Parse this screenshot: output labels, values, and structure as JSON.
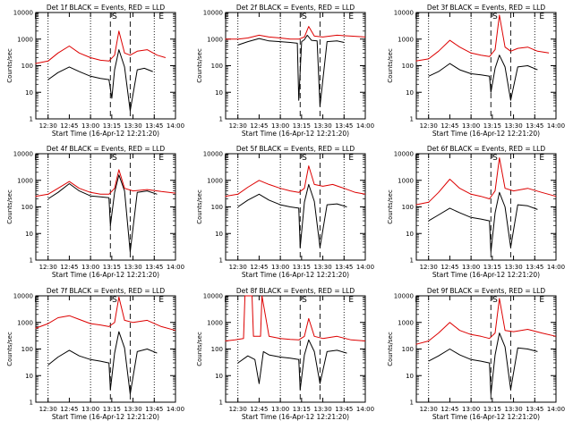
{
  "colors": {
    "events": "#000000",
    "lld": "#dd0000",
    "axis": "#000000"
  },
  "chart_data": [
    {
      "type": "line",
      "title": "Det 1f BLACK = Events, RED = LLD",
      "xlabel": "Start Time (16-Apr-12 12:21:20)",
      "ylabel": "Counts/sec",
      "yscale": "log",
      "ylim": [
        1,
        10000
      ],
      "xlim": [
        "12:21:20",
        "14:00"
      ],
      "x_ticks": [
        "12:30",
        "12:45",
        "13:00",
        "13:15",
        "13:30",
        "13:45",
        "14:00"
      ],
      "y_ticks": [
        "1",
        "10",
        "100",
        "1000",
        "10000"
      ],
      "markers": [
        "E",
        "S",
        "E"
      ],
      "series": [
        {
          "name": "BLACK = Events",
          "color": "#000000",
          "x": [
            "12:30",
            "12:37",
            "12:45",
            "12:52",
            "13:00",
            "13:07",
            "13:13",
            "13:15",
            "13:17",
            "13:20",
            "13:24",
            "13:28",
            "13:33",
            "13:38",
            "13:44"
          ],
          "y": [
            30,
            55,
            90,
            60,
            40,
            33,
            30,
            6,
            70,
            400,
            90,
            2,
            70,
            80,
            60
          ]
        },
        {
          "name": "RED = LLD",
          "color": "#dd0000",
          "x": [
            "12:21",
            "12:30",
            "12:37",
            "12:45",
            "12:52",
            "13:00",
            "13:07",
            "13:13",
            "13:17",
            "13:20",
            "13:24",
            "13:28",
            "13:33",
            "13:40",
            "13:47",
            "13:53"
          ],
          "y": [
            120,
            150,
            300,
            550,
            300,
            200,
            160,
            150,
            250,
            2000,
            300,
            250,
            350,
            400,
            250,
            200
          ]
        }
      ]
    },
    {
      "type": "line",
      "title": "Det 2f BLACK = Events, RED = LLD",
      "xlabel": "Start Time (16-Apr-12 12:21:20)",
      "ylabel": "Counts/sec",
      "yscale": "log",
      "ylim": [
        1,
        10000
      ],
      "xlim": [
        "12:21:20",
        "14:00"
      ],
      "x_ticks": [
        "12:30",
        "12:45",
        "13:00",
        "13:15",
        "13:30",
        "13:45",
        "14:00"
      ],
      "y_ticks": [
        "1",
        "10",
        "100",
        "1000",
        "10000"
      ],
      "markers": [
        "E",
        "S",
        "E"
      ],
      "series": [
        {
          "name": "BLACK = Events",
          "color": "#000000",
          "x": [
            "12:30",
            "12:37",
            "12:45",
            "12:52",
            "13:00",
            "13:07",
            "13:12",
            "13:13",
            "13:15",
            "13:17",
            "13:19",
            "13:22",
            "13:26",
            "13:28",
            "13:33",
            "13:40",
            "13:45"
          ],
          "y": [
            600,
            800,
            1050,
            850,
            800,
            750,
            700,
            5,
            800,
            950,
            1400,
            900,
            850,
            3,
            800,
            850,
            750
          ]
        },
        {
          "name": "RED = LLD",
          "color": "#dd0000",
          "x": [
            "12:21",
            "12:30",
            "12:37",
            "12:45",
            "12:52",
            "13:00",
            "13:07",
            "13:13",
            "13:17",
            "13:20",
            "13:24",
            "13:30",
            "13:40",
            "13:50",
            "14:00"
          ],
          "y": [
            1000,
            1000,
            1100,
            1400,
            1200,
            1100,
            1000,
            1000,
            1200,
            3000,
            1300,
            1200,
            1400,
            1300,
            1200
          ]
        }
      ]
    },
    {
      "type": "line",
      "title": "Det 3f BLACK = Events, RED = LLD",
      "xlabel": "Start Time (16-Apr-12 12:21:20)",
      "ylabel": "Counts/sec",
      "yscale": "log",
      "ylim": [
        1,
        10000
      ],
      "xlim": [
        "12:21:20",
        "14:00"
      ],
      "x_ticks": [
        "12:30",
        "12:45",
        "13:00",
        "13:15",
        "13:30",
        "13:45",
        "14:00"
      ],
      "y_ticks": [
        "1",
        "10",
        "100",
        "1000",
        "10000"
      ],
      "markers": [
        "E",
        "S",
        "E"
      ],
      "series": [
        {
          "name": "BLACK = Events",
          "color": "#000000",
          "x": [
            "12:30",
            "12:37",
            "12:45",
            "12:52",
            "13:00",
            "13:07",
            "13:13",
            "13:14",
            "13:17",
            "13:20",
            "13:24",
            "13:28",
            "13:33",
            "13:40",
            "13:47"
          ],
          "y": [
            40,
            60,
            120,
            70,
            50,
            45,
            40,
            10,
            80,
            250,
            90,
            5,
            90,
            100,
            70
          ]
        },
        {
          "name": "RED = LLD",
          "color": "#dd0000",
          "x": [
            "12:21",
            "12:30",
            "12:37",
            "12:45",
            "12:52",
            "13:00",
            "13:07",
            "13:13",
            "13:17",
            "13:20",
            "13:24",
            "13:28",
            "13:33",
            "13:40",
            "13:47",
            "13:55"
          ],
          "y": [
            150,
            180,
            350,
            900,
            500,
            300,
            250,
            220,
            400,
            8000,
            500,
            350,
            450,
            500,
            350,
            300
          ]
        }
      ]
    },
    {
      "type": "line",
      "title": "Det 4f BLACK = Events, RED = LLD",
      "xlabel": "Start Time (16-Apr-12 12:21:20)",
      "ylabel": "Counts/sec",
      "yscale": "log",
      "ylim": [
        1,
        10000
      ],
      "xlim": [
        "12:21:20",
        "14:00"
      ],
      "x_ticks": [
        "12:30",
        "12:45",
        "13:00",
        "13:15",
        "13:30",
        "13:45",
        "14:00"
      ],
      "y_ticks": [
        "1",
        "10",
        "100",
        "1000",
        "10000"
      ],
      "markers": [
        "E",
        "S",
        "E"
      ],
      "series": [
        {
          "name": "BLACK = Events",
          "color": "#000000",
          "x": [
            "12:30",
            "12:37",
            "12:45",
            "12:52",
            "13:00",
            "13:07",
            "13:13",
            "13:14",
            "13:17",
            "13:20",
            "13:24",
            "13:28",
            "13:33",
            "13:40",
            "13:47"
          ],
          "y": [
            200,
            350,
            750,
            400,
            260,
            240,
            220,
            20,
            350,
            1600,
            400,
            2,
            350,
            400,
            300
          ]
        },
        {
          "name": "RED = LLD",
          "color": "#dd0000",
          "x": [
            "12:21",
            "12:30",
            "12:37",
            "12:45",
            "12:52",
            "13:00",
            "13:07",
            "13:13",
            "13:17",
            "13:20",
            "13:24",
            "13:30",
            "13:40",
            "13:50",
            "14:00"
          ],
          "y": [
            250,
            300,
            500,
            900,
            500,
            350,
            300,
            300,
            500,
            2500,
            500,
            400,
            450,
            380,
            330
          ]
        }
      ]
    },
    {
      "type": "line",
      "title": "Det 5f BLACK = Events, RED = LLD",
      "xlabel": "Start Time (16-Apr-12 12:21:20)",
      "ylabel": "Counts/sec",
      "yscale": "log",
      "ylim": [
        1,
        10000
      ],
      "xlim": [
        "12:21:20",
        "14:00"
      ],
      "x_ticks": [
        "12:30",
        "12:45",
        "13:00",
        "13:15",
        "13:30",
        "13:45",
        "14:00"
      ],
      "y_ticks": [
        "1",
        "10",
        "100",
        "1000",
        "10000"
      ],
      "markers": [
        "E",
        "S",
        "E"
      ],
      "series": [
        {
          "name": "BLACK = Events",
          "color": "#000000",
          "x": [
            "12:30",
            "12:37",
            "12:45",
            "12:52",
            "13:00",
            "13:07",
            "13:13",
            "13:14",
            "13:17",
            "13:20",
            "13:24",
            "13:28",
            "13:33",
            "13:40",
            "13:47"
          ],
          "y": [
            100,
            180,
            300,
            180,
            120,
            100,
            90,
            3,
            150,
            700,
            160,
            3,
            120,
            130,
            100
          ]
        },
        {
          "name": "RED = LLD",
          "color": "#dd0000",
          "x": [
            "12:21",
            "12:30",
            "12:37",
            "12:45",
            "12:52",
            "13:00",
            "13:07",
            "13:13",
            "13:17",
            "13:20",
            "13:24",
            "13:30",
            "13:37",
            "13:45",
            "13:53",
            "14:00"
          ],
          "y": [
            250,
            300,
            550,
            1000,
            700,
            500,
            400,
            350,
            500,
            3500,
            700,
            600,
            700,
            500,
            350,
            300
          ]
        }
      ]
    },
    {
      "type": "line",
      "title": "Det 6f BLACK = Events, RED = LLD",
      "xlabel": "Start Time (16-Apr-12 12:21:20)",
      "ylabel": "Counts/sec",
      "yscale": "log",
      "ylim": [
        1,
        10000
      ],
      "xlim": [
        "12:21:20",
        "14:00"
      ],
      "x_ticks": [
        "12:30",
        "12:45",
        "13:00",
        "13:15",
        "13:30",
        "13:45",
        "14:00"
      ],
      "y_ticks": [
        "1",
        "10",
        "100",
        "1000",
        "10000"
      ],
      "markers": [
        "E",
        "S",
        "E"
      ],
      "series": [
        {
          "name": "BLACK = Events",
          "color": "#000000",
          "x": [
            "12:30",
            "12:37",
            "12:45",
            "12:52",
            "13:00",
            "13:07",
            "13:13",
            "13:14",
            "13:17",
            "13:20",
            "13:24",
            "13:28",
            "13:33",
            "13:40",
            "13:47"
          ],
          "y": [
            30,
            50,
            90,
            60,
            40,
            35,
            30,
            2,
            60,
            350,
            100,
            3,
            120,
            110,
            80
          ]
        },
        {
          "name": "RED = LLD",
          "color": "#dd0000",
          "x": [
            "12:21",
            "12:30",
            "12:37",
            "12:45",
            "12:52",
            "13:00",
            "13:07",
            "13:13",
            "13:17",
            "13:20",
            "13:24",
            "13:30",
            "13:40",
            "13:50",
            "14:00"
          ],
          "y": [
            120,
            150,
            350,
            1100,
            500,
            300,
            250,
            200,
            400,
            7000,
            500,
            400,
            500,
            350,
            250
          ]
        }
      ]
    },
    {
      "type": "line",
      "title": "Det 7f BLACK = Events, RED = LLD",
      "xlabel": "Start Time (16-Apr-12 12:21:20)",
      "ylabel": "Counts/sec",
      "yscale": "log",
      "ylim": [
        1,
        10000
      ],
      "xlim": [
        "12:21:20",
        "14:00"
      ],
      "x_ticks": [
        "12:30",
        "12:45",
        "13:00",
        "13:15",
        "13:30",
        "13:45",
        "14:00"
      ],
      "y_ticks": [
        "1",
        "10",
        "100",
        "1000",
        "10000"
      ],
      "markers": [
        "E",
        "S",
        "E"
      ],
      "series": [
        {
          "name": "BLACK = Events",
          "color": "#000000",
          "x": [
            "12:30",
            "12:37",
            "12:45",
            "12:52",
            "13:00",
            "13:07",
            "13:13",
            "13:14",
            "13:17",
            "13:20",
            "13:24",
            "13:28",
            "13:33",
            "13:40",
            "13:47"
          ],
          "y": [
            25,
            50,
            90,
            55,
            40,
            35,
            30,
            3,
            70,
            450,
            110,
            2,
            80,
            100,
            70
          ]
        },
        {
          "name": "RED = LLD",
          "color": "#dd0000",
          "x": [
            "12:21",
            "12:30",
            "12:37",
            "12:45",
            "12:52",
            "13:00",
            "13:07",
            "13:13",
            "13:17",
            "13:20",
            "13:24",
            "13:30",
            "13:40",
            "13:50",
            "14:00"
          ],
          "y": [
            600,
            900,
            1500,
            1800,
            1300,
            900,
            800,
            700,
            1000,
            9000,
            1200,
            1000,
            1200,
            700,
            500
          ]
        }
      ]
    },
    {
      "type": "line",
      "title": "Det 8f BLACK = Events, RED = LLD",
      "xlabel": "Start Time (16-Apr-12 12:21:20)",
      "ylabel": "Counts/sec",
      "yscale": "log",
      "ylim": [
        1,
        10000
      ],
      "xlim": [
        "12:21:20",
        "14:00"
      ],
      "x_ticks": [
        "12:30",
        "12:45",
        "13:00",
        "13:15",
        "13:30",
        "13:45",
        "14:00"
      ],
      "y_ticks": [
        "1",
        "10",
        "100",
        "1000",
        "10000"
      ],
      "markers": [
        "E",
        "S",
        "E"
      ],
      "series": [
        {
          "name": "BLACK = Events",
          "color": "#000000",
          "x": [
            "12:30",
            "12:37",
            "12:42",
            "12:45",
            "12:48",
            "12:52",
            "13:00",
            "13:07",
            "13:13",
            "13:14",
            "13:17",
            "13:20",
            "13:24",
            "13:28",
            "13:33",
            "13:40",
            "13:47"
          ],
          "y": [
            30,
            55,
            40,
            5,
            80,
            60,
            50,
            45,
            40,
            3,
            60,
            220,
            80,
            5,
            80,
            90,
            70
          ]
        },
        {
          "name": "RED = LLD",
          "color": "#dd0000",
          "x": [
            "12:21",
            "12:28",
            "12:34",
            "12:35",
            "12:40",
            "12:41",
            "12:46",
            "12:47",
            "12:52",
            "13:00",
            "13:07",
            "13:13",
            "13:17",
            "13:20",
            "13:24",
            "13:30",
            "13:40",
            "13:50",
            "14:00"
          ],
          "y": [
            200,
            220,
            250,
            10000,
            10000,
            300,
            300,
            10000,
            300,
            250,
            230,
            220,
            300,
            1400,
            300,
            250,
            300,
            220,
            200
          ]
        }
      ]
    },
    {
      "type": "line",
      "title": "Det 9f BLACK = Events, RED = LLD",
      "xlabel": "Start Time (16-Apr-12 12:21:20)",
      "ylabel": "Counts/sec",
      "yscale": "log",
      "ylim": [
        1,
        10000
      ],
      "xlim": [
        "12:21:20",
        "14:00"
      ],
      "x_ticks": [
        "12:30",
        "12:45",
        "13:00",
        "13:15",
        "13:30",
        "13:45",
        "14:00"
      ],
      "y_ticks": [
        "1",
        "10",
        "100",
        "1000",
        "10000"
      ],
      "markers": [
        "E",
        "S",
        "E"
      ],
      "series": [
        {
          "name": "BLACK = Events",
          "color": "#000000",
          "x": [
            "12:30",
            "12:37",
            "12:45",
            "12:52",
            "13:00",
            "13:07",
            "13:13",
            "13:14",
            "13:17",
            "13:20",
            "13:24",
            "13:28",
            "13:33",
            "13:40",
            "13:47"
          ],
          "y": [
            35,
            55,
            100,
            60,
            40,
            35,
            30,
            2,
            60,
            400,
            120,
            3,
            110,
            100,
            80
          ]
        },
        {
          "name": "RED = LLD",
          "color": "#dd0000",
          "x": [
            "12:21",
            "12:30",
            "12:37",
            "12:45",
            "12:52",
            "13:00",
            "13:07",
            "13:13",
            "13:17",
            "13:20",
            "13:24",
            "13:30",
            "13:40",
            "13:50",
            "14:00"
          ],
          "y": [
            150,
            200,
            400,
            1000,
            500,
            350,
            300,
            250,
            400,
            8000,
            500,
            450,
            550,
            400,
            300
          ]
        }
      ]
    }
  ]
}
